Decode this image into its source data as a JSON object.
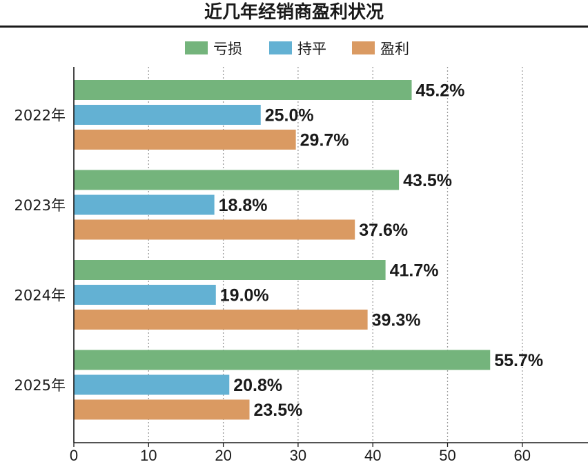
{
  "chart_data": {
    "type": "bar",
    "orientation": "horizontal",
    "title": "近几年经销商盈利状况",
    "categories": [
      "2022年",
      "2023年",
      "2024年",
      "2025年"
    ],
    "series": [
      {
        "name": "亏损",
        "color": "#74b47c",
        "values": [
          45.2,
          43.5,
          41.7,
          55.7
        ],
        "labels": [
          "45.2%",
          "43.5%",
          "41.7%",
          "55.7%"
        ]
      },
      {
        "name": "持平",
        "color": "#63b1d3",
        "values": [
          25.0,
          18.8,
          19.0,
          20.8
        ],
        "labels": [
          "25.0%",
          "18.8%",
          "19.0%",
          "20.8%"
        ]
      },
      {
        "name": "盈利",
        "color": "#da9a62",
        "values": [
          29.7,
          37.6,
          39.3,
          23.5
        ],
        "labels": [
          "29.7%",
          "37.6%",
          "39.3%",
          "23.5%"
        ]
      }
    ],
    "xlim": [
      0,
      68
    ],
    "xticks": [
      0,
      10,
      20,
      30,
      40,
      50,
      60
    ],
    "grid": "vertical dotted",
    "legend": "top-center"
  }
}
